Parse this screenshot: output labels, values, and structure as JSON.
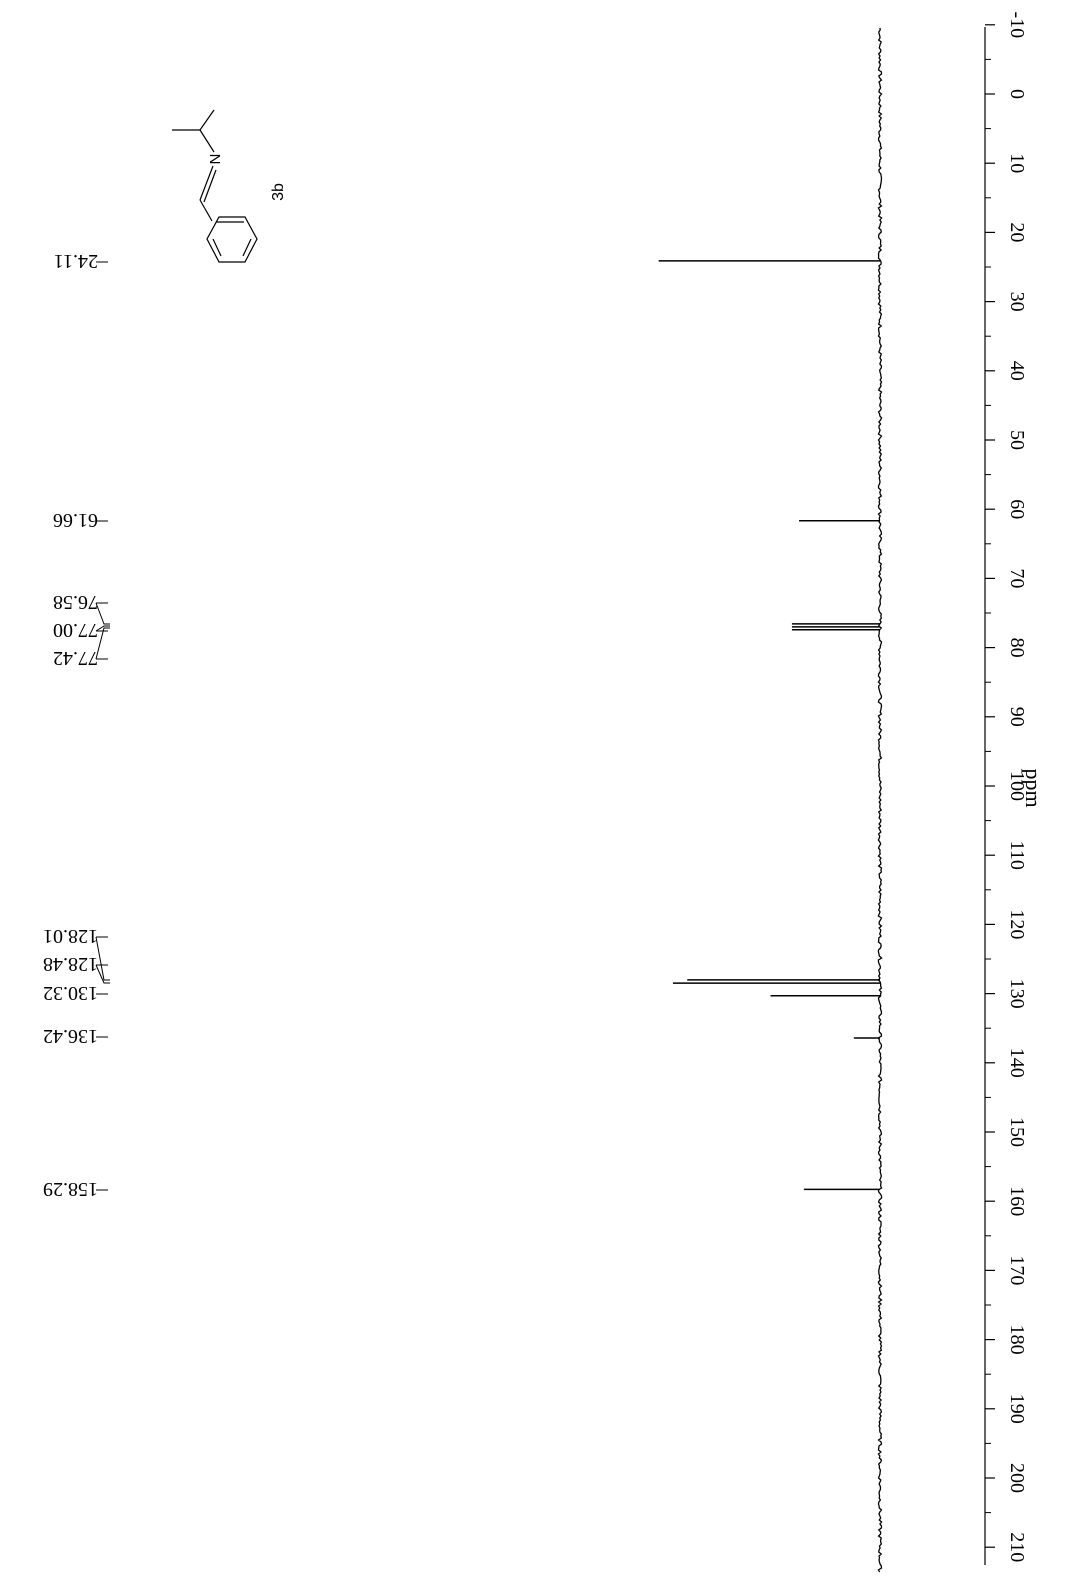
{
  "chart_data": {
    "type": "line",
    "title": "",
    "xlabel": "ppm",
    "ylabel": "",
    "xlim": [
      -10,
      210
    ],
    "x_ticks": [
      -10,
      0,
      10,
      20,
      30,
      40,
      50,
      60,
      70,
      80,
      90,
      100,
      110,
      120,
      130,
      140,
      150,
      160,
      170,
      180,
      190,
      200,
      210
    ],
    "tick_labels": [
      "-10",
      "0",
      "10",
      "20",
      "30",
      "40",
      "50",
      "60",
      "70",
      "80",
      "90",
      "100",
      "110",
      "120",
      "130",
      "140",
      "150",
      "160",
      "170",
      "180",
      "190",
      "200",
      "210"
    ],
    "grid": false,
    "peaks": [
      {
        "ppm": 24.11,
        "intensity": 0.93
      },
      {
        "ppm": 61.66,
        "intensity": 0.34
      },
      {
        "ppm": 76.58,
        "intensity": 0.37
      },
      {
        "ppm": 77.0,
        "intensity": 0.37
      },
      {
        "ppm": 77.42,
        "intensity": 0.37
      },
      {
        "ppm": 128.01,
        "intensity": 0.81
      },
      {
        "ppm": 128.48,
        "intensity": 0.87
      },
      {
        "ppm": 130.32,
        "intensity": 0.46
      },
      {
        "ppm": 136.42,
        "intensity": 0.11
      },
      {
        "ppm": 158.29,
        "intensity": 0.32
      }
    ],
    "peak_labels": [
      {
        "text": "24.11",
        "ppm": 24.11
      },
      {
        "text": "61.66",
        "ppm": 61.66
      },
      {
        "text": "76.58",
        "ppm": 76.58
      },
      {
        "text": "77.00",
        "ppm": 77.0
      },
      {
        "text": "77.42",
        "ppm": 77.42
      },
      {
        "text": "128.01",
        "ppm": 128.01
      },
      {
        "text": "128.48",
        "ppm": 128.48
      },
      {
        "text": "130.32",
        "ppm": 130.32
      },
      {
        "text": "136.42",
        "ppm": 136.42
      },
      {
        "text": "158.29",
        "ppm": 158.29
      }
    ],
    "compound_label": "3b",
    "structure_atom_label": "N",
    "orientation": "rotated-90-clockwise"
  }
}
